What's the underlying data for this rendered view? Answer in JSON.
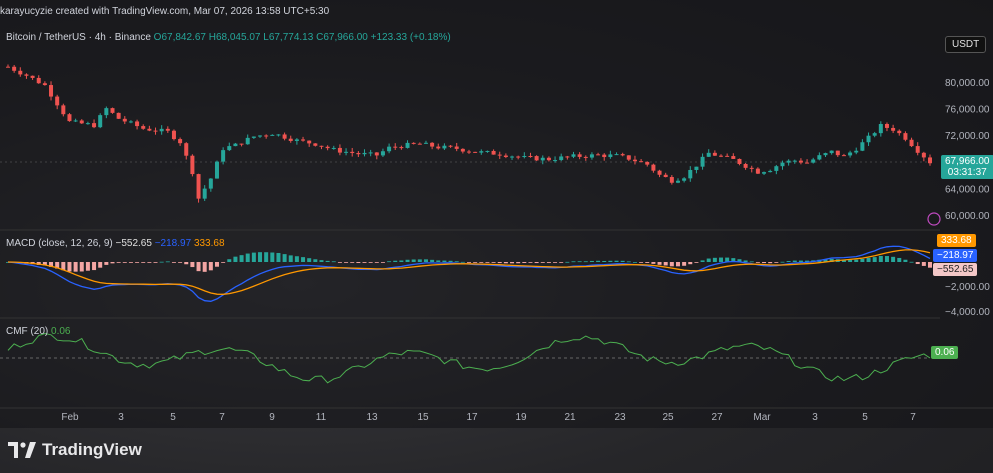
{
  "header": {
    "author_line": "karayucyzie created with TradingView.com, Mar 07, 2026 13:58 UTC+5:30",
    "symbol": "Bitcoin / TetherUS · 4h · Binance",
    "o_label": "O",
    "o_value": "67,842.67",
    "h_label": "H",
    "h_value": "68,045.07",
    "l_label": "L",
    "l_value": "67,774.13",
    "c_label": "C",
    "c_value": "67,966.00",
    "change": "+123.33 (+0.18%)"
  },
  "currency_button": "USDT",
  "price_axis": [
    "80,000.00",
    "76,000.00",
    "72,000.00",
    "64,000.00",
    "60,000.00"
  ],
  "last_price": {
    "value": "67,966.00",
    "countdown": "03:31:37"
  },
  "macd": {
    "title": "MACD (close, 12, 26, 9)",
    "v1": "−552.65",
    "v2": "−218.97",
    "v3": "333.68",
    "axis": [
      "−2,000.00",
      "−4,000.00"
    ],
    "tag_signal": "333.68",
    "tag_macd": "−218.97",
    "tag_hist": "−552.65"
  },
  "cmf": {
    "title": "CMF (20)",
    "value": "0.06",
    "tag": "0.06"
  },
  "time_axis": [
    "Feb",
    "3",
    "5",
    "7",
    "9",
    "11",
    "13",
    "15",
    "17",
    "19",
    "21",
    "23",
    "25",
    "27",
    "Mar",
    "3",
    "5",
    "7"
  ],
  "brand": "TradingView",
  "colors": {
    "up": "#26a69a",
    "down": "#ef5350",
    "macd": "#2962ff",
    "signal": "#ff9800",
    "cmf": "#4caf50"
  },
  "chart_data": {
    "type": "candlestick",
    "title": "Bitcoin / TetherUS · 4h · Binance",
    "ylim": [
      60000,
      83000
    ],
    "price_path": [
      [
        0,
        82300
      ],
      [
        3,
        81000
      ],
      [
        6,
        79500
      ],
      [
        10,
        74000
      ],
      [
        14,
        73500
      ],
      [
        16,
        76000
      ],
      [
        18,
        74500
      ],
      [
        22,
        73000
      ],
      [
        26,
        72500
      ],
      [
        28,
        71000
      ],
      [
        30,
        66500
      ],
      [
        31,
        62500
      ],
      [
        33,
        65500
      ],
      [
        35,
        70000
      ],
      [
        37,
        70500
      ],
      [
        40,
        71800
      ],
      [
        43,
        72300
      ],
      [
        47,
        71200
      ],
      [
        50,
        70700
      ],
      [
        53,
        69800
      ],
      [
        57,
        69200
      ],
      [
        60,
        69000
      ],
      [
        62,
        70100
      ],
      [
        64,
        70400
      ],
      [
        67,
        70700
      ],
      [
        70,
        70200
      ],
      [
        73,
        70000
      ],
      [
        76,
        69500
      ],
      [
        80,
        69200
      ],
      [
        84,
        68600
      ],
      [
        88,
        68400
      ],
      [
        92,
        68800
      ],
      [
        96,
        69000
      ],
      [
        99,
        68900
      ],
      [
        101,
        68500
      ],
      [
        104,
        67600
      ],
      [
        106,
        66000
      ],
      [
        108,
        65200
      ],
      [
        110,
        65800
      ],
      [
        112,
        67500
      ],
      [
        114,
        69300
      ],
      [
        116,
        68800
      ],
      [
        118,
        68300
      ],
      [
        120,
        67400
      ],
      [
        122,
        66500
      ],
      [
        124,
        66900
      ],
      [
        126,
        67900
      ],
      [
        128,
        68200
      ],
      [
        130,
        67900
      ],
      [
        132,
        68800
      ],
      [
        134,
        69500
      ],
      [
        136,
        68800
      ],
      [
        138,
        70000
      ],
      [
        140,
        71600
      ],
      [
        142,
        73400
      ],
      [
        144,
        72900
      ],
      [
        146,
        71600
      ],
      [
        148,
        69700
      ],
      [
        150,
        67966
      ]
    ],
    "series": [
      {
        "name": "MACD",
        "values": "line"
      },
      {
        "name": "CMF",
        "values": "line"
      }
    ]
  }
}
